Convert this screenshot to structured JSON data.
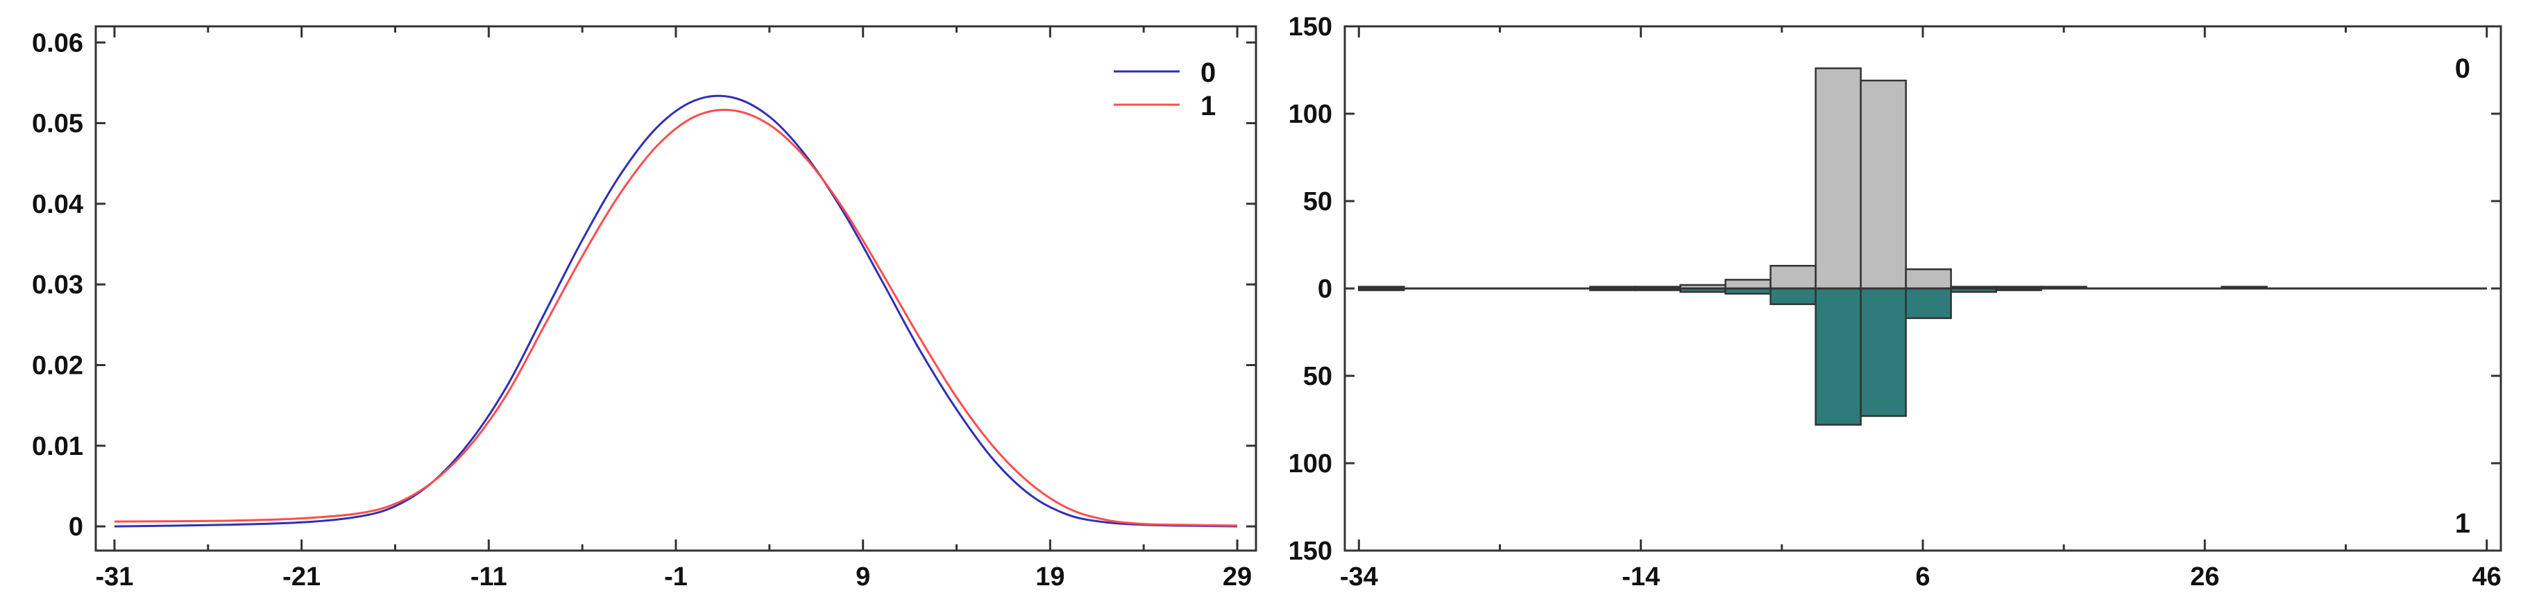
{
  "chart_data": [
    {
      "type": "line",
      "title": "",
      "xlabel": "",
      "ylabel": "",
      "xlim": [
        -32,
        30
      ],
      "ylim": [
        -0.003,
        0.062
      ],
      "x_ticks": [
        "-31",
        "-21",
        "-11",
        "-1",
        "9",
        "19",
        "29"
      ],
      "x_tick_values": [
        -31,
        -21,
        -11,
        -1,
        9,
        19,
        29
      ],
      "y_ticks": [
        "0",
        "0.01",
        "0.02",
        "0.03",
        "0.04",
        "0.05",
        "0.06"
      ],
      "y_tick_values": [
        0,
        0.01,
        0.02,
        0.03,
        0.04,
        0.05,
        0.06
      ],
      "legend_position": "top-right",
      "series": [
        {
          "name": "0",
          "color": "#2f2fb8",
          "x": [
            -31,
            -25,
            -21,
            -18,
            -16,
            -14,
            -12,
            -10,
            -8,
            -6,
            -4,
            -2,
            0,
            2,
            4,
            6,
            8,
            10,
            12,
            14,
            16,
            18,
            20,
            22,
            24,
            26,
            29
          ],
          "y": [
            0.0,
            0.0002,
            0.0005,
            0.0012,
            0.0025,
            0.0055,
            0.0105,
            0.0175,
            0.0265,
            0.0355,
            0.0435,
            0.0495,
            0.0528,
            0.0532,
            0.0508,
            0.0458,
            0.0388,
            0.0305,
            0.022,
            0.0145,
            0.0082,
            0.0038,
            0.0014,
            0.0005,
            0.0002,
            0.0001,
            0.0
          ]
        },
        {
          "name": "1",
          "color": "#ff4d4d",
          "x": [
            -31,
            -25,
            -21,
            -18,
            -16,
            -14,
            -12,
            -10,
            -8,
            -6,
            -4,
            -2,
            0,
            2,
            4,
            6,
            8,
            10,
            12,
            14,
            16,
            18,
            20,
            22,
            24,
            26,
            29
          ],
          "y": [
            0.0006,
            0.0007,
            0.001,
            0.0016,
            0.0028,
            0.0055,
            0.01,
            0.0165,
            0.025,
            0.0335,
            0.0412,
            0.0472,
            0.0508,
            0.0516,
            0.0498,
            0.0455,
            0.0392,
            0.0315,
            0.0235,
            0.016,
            0.0098,
            0.0052,
            0.0022,
            0.0008,
            0.0003,
            0.0002,
            0.0001
          ]
        }
      ]
    },
    {
      "type": "bar",
      "subtype": "back-to-back histogram",
      "title": "",
      "xlabel": "",
      "ylabel": "",
      "xlim": [
        -35,
        47
      ],
      "ylim": [
        -150,
        150
      ],
      "x_ticks": [
        "-34",
        "-14",
        "6",
        "26",
        "46"
      ],
      "x_tick_values": [
        -34,
        -14,
        6,
        26,
        46
      ],
      "y_ticks": [
        "150",
        "100",
        "50",
        "0",
        "50",
        "100",
        "150"
      ],
      "y_tick_values": [
        150,
        100,
        50,
        0,
        -50,
        -100,
        -150
      ],
      "top_series_label": "0",
      "bottom_series_label": "1",
      "bin_width": 3.2,
      "bin_starts": [
        -34,
        -17.6,
        -14.4,
        -11.2,
        -8.0,
        -4.8,
        -1.6,
        1.6,
        4.8,
        8.0,
        11.2,
        14.4,
        27.2
      ],
      "series": [
        {
          "name": "0",
          "color": "#bdbdbd",
          "values": [
            1,
            1,
            1,
            2,
            5,
            13,
            126,
            119,
            11,
            1,
            1,
            1,
            1
          ]
        },
        {
          "name": "1",
          "color": "#2e7b79",
          "values": [
            1,
            1,
            1,
            2,
            3,
            9,
            78,
            73,
            17,
            2,
            1,
            0,
            0
          ]
        }
      ]
    }
  ]
}
